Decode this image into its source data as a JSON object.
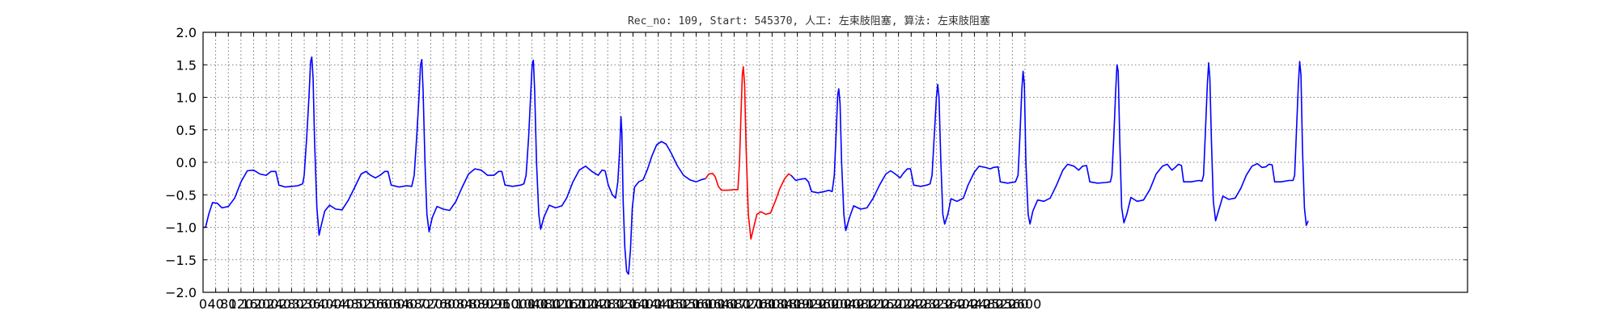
{
  "chart_data": {
    "type": "line",
    "title": "Rec_no: 109, Start: 545370, 人工: 左束肢阻塞, 算法: 左束肢阻塞",
    "xlabel": "",
    "ylabel": "",
    "xlim": [
      0,
      4000
    ],
    "ylim": [
      -2.0,
      2.0
    ],
    "grid": true,
    "yticks": [
      -2.0,
      -1.5,
      -1.0,
      -0.5,
      0.0,
      0.5,
      1.0,
      1.5,
      2.0
    ],
    "ytick_labels": [
      "−2.0",
      "−1.5",
      "−1.0",
      "−0.5",
      "0.0",
      "0.5",
      "1.0",
      "1.5",
      "2.0"
    ],
    "xticks": [
      0,
      40,
      80,
      120,
      160,
      200,
      240,
      280,
      320,
      360,
      400,
      440,
      480,
      520,
      560,
      600,
      640,
      680,
      720,
      760,
      800,
      840,
      880,
      920,
      960,
      1000,
      1040,
      1080,
      1120,
      1160,
      1200,
      1240,
      1280,
      1320,
      1360,
      1400,
      1440,
      1480,
      1520,
      1560,
      1600,
      1640,
      1680,
      1720,
      1760,
      1800,
      1840,
      1880,
      1920,
      1960,
      2000,
      2040,
      2080,
      2120,
      2160,
      2200,
      2240,
      2280,
      2320,
      2360,
      2400,
      2440,
      2480,
      2520,
      2560,
      2600
    ],
    "xtick_labels": [
      "0",
      "40",
      "80",
      "120",
      "160",
      "200",
      "240",
      "280",
      "320",
      "360",
      "400",
      "440",
      "480",
      "520",
      "560",
      "600",
      "640",
      "680",
      "720",
      "760",
      "800",
      "840",
      "880",
      "920",
      "960",
      "1000",
      "1040",
      "1080",
      "1120",
      "1160",
      "1200",
      "1240",
      "1280",
      "1320",
      "1360",
      "1400",
      "1440",
      "1480",
      "1520",
      "1560",
      "1600",
      "1640",
      "1680",
      "1720",
      "1760",
      "1800",
      "1840",
      "1880",
      "1920",
      "1960",
      "2000",
      "2040",
      "2080",
      "2120",
      "2160",
      "2200",
      "2240",
      "2280",
      "2320",
      "2360",
      "2400",
      "2440",
      "2480",
      "2520",
      "2560",
      "2600"
    ],
    "series": [
      {
        "color": "#0000ff",
        "segment": "before",
        "points": [
          [
            0,
            -1.0
          ],
          [
            8,
            -1.0
          ],
          [
            18,
            -0.8
          ],
          [
            30,
            -0.62
          ],
          [
            45,
            -0.63
          ],
          [
            60,
            -0.7
          ],
          [
            80,
            -0.68
          ],
          [
            100,
            -0.55
          ],
          [
            120,
            -0.3
          ],
          [
            140,
            -0.13
          ],
          [
            160,
            -0.12
          ],
          [
            180,
            -0.18
          ],
          [
            200,
            -0.2
          ],
          [
            215,
            -0.14
          ],
          [
            230,
            -0.14
          ],
          [
            240,
            -0.35
          ],
          [
            260,
            -0.38
          ],
          [
            280,
            -0.37
          ],
          [
            300,
            -0.36
          ],
          [
            315,
            -0.33
          ],
          [
            320,
            -0.2
          ],
          [
            328,
            0.4
          ],
          [
            335,
            1.0
          ],
          [
            340,
            1.55
          ],
          [
            344,
            1.62
          ],
          [
            348,
            1.3
          ],
          [
            353,
            0.3
          ],
          [
            360,
            -0.7
          ],
          [
            367,
            -1.12
          ],
          [
            375,
            -0.95
          ],
          [
            385,
            -0.75
          ],
          [
            400,
            -0.66
          ],
          [
            420,
            -0.72
          ],
          [
            440,
            -0.73
          ],
          [
            460,
            -0.58
          ],
          [
            480,
            -0.38
          ],
          [
            500,
            -0.18
          ],
          [
            515,
            -0.14
          ],
          [
            530,
            -0.2
          ],
          [
            545,
            -0.24
          ],
          [
            560,
            -0.2
          ],
          [
            575,
            -0.14
          ],
          [
            585,
            -0.14
          ],
          [
            595,
            -0.35
          ],
          [
            620,
            -0.38
          ],
          [
            645,
            -0.36
          ],
          [
            660,
            -0.37
          ],
          [
            668,
            -0.2
          ],
          [
            676,
            0.4
          ],
          [
            683,
            1.0
          ],
          [
            688,
            1.5
          ],
          [
            692,
            1.58
          ],
          [
            696,
            1.1
          ],
          [
            702,
            0.0
          ],
          [
            708,
            -0.8
          ],
          [
            715,
            -1.07
          ],
          [
            725,
            -0.85
          ],
          [
            740,
            -0.68
          ],
          [
            760,
            -0.72
          ],
          [
            780,
            -0.74
          ],
          [
            800,
            -0.6
          ],
          [
            820,
            -0.38
          ],
          [
            840,
            -0.18
          ],
          [
            860,
            -0.1
          ],
          [
            880,
            -0.12
          ],
          [
            900,
            -0.2
          ],
          [
            920,
            -0.2
          ],
          [
            935,
            -0.14
          ],
          [
            945,
            -0.14
          ],
          [
            955,
            -0.35
          ],
          [
            980,
            -0.37
          ],
          [
            1005,
            -0.35
          ],
          [
            1015,
            -0.33
          ],
          [
            1022,
            -0.2
          ],
          [
            1030,
            0.4
          ],
          [
            1036,
            1.0
          ],
          [
            1041,
            1.5
          ],
          [
            1045,
            1.57
          ],
          [
            1049,
            1.1
          ],
          [
            1055,
            0.0
          ],
          [
            1062,
            -0.8
          ],
          [
            1068,
            -1.03
          ],
          [
            1078,
            -0.85
          ],
          [
            1095,
            -0.66
          ],
          [
            1115,
            -0.7
          ],
          [
            1135,
            -0.67
          ],
          [
            1150,
            -0.55
          ],
          [
            1170,
            -0.3
          ],
          [
            1190,
            -0.12
          ],
          [
            1210,
            -0.06
          ],
          [
            1230,
            -0.14
          ],
          [
            1250,
            -0.2
          ],
          [
            1262,
            -0.12
          ],
          [
            1272,
            -0.13
          ],
          [
            1282,
            -0.35
          ],
          [
            1295,
            -0.5
          ],
          [
            1305,
            -0.55
          ],
          [
            1312,
            -0.3
          ],
          [
            1318,
            0.2
          ],
          [
            1322,
            0.7
          ],
          [
            1325,
            0.45
          ],
          [
            1329,
            -0.6
          ],
          [
            1334,
            -1.3
          ],
          [
            1340,
            -1.68
          ],
          [
            1346,
            -1.72
          ],
          [
            1352,
            -1.35
          ],
          [
            1358,
            -0.7
          ],
          [
            1365,
            -0.38
          ],
          [
            1378,
            -0.3
          ],
          [
            1392,
            -0.27
          ],
          [
            1405,
            -0.12
          ],
          [
            1420,
            0.1
          ],
          [
            1435,
            0.27
          ],
          [
            1450,
            0.32
          ],
          [
            1465,
            0.28
          ],
          [
            1480,
            0.15
          ],
          [
            1500,
            -0.05
          ],
          [
            1520,
            -0.2
          ],
          [
            1540,
            -0.27
          ],
          [
            1560,
            -0.3
          ],
          [
            1575,
            -0.27
          ],
          [
            1590,
            -0.25
          ]
        ]
      },
      {
        "color": "#ff0000",
        "segment": "highlighted beat",
        "points": [
          [
            1590,
            -0.25
          ],
          [
            1600,
            -0.18
          ],
          [
            1612,
            -0.17
          ],
          [
            1620,
            -0.22
          ],
          [
            1630,
            -0.37
          ],
          [
            1640,
            -0.43
          ],
          [
            1660,
            -0.43
          ],
          [
            1680,
            -0.42
          ],
          [
            1692,
            -0.42
          ],
          [
            1697,
            0.0
          ],
          [
            1702,
            0.8
          ],
          [
            1706,
            1.35
          ],
          [
            1709,
            1.47
          ],
          [
            1713,
            1.2
          ],
          [
            1718,
            0.2
          ],
          [
            1725,
            -0.8
          ],
          [
            1733,
            -1.18
          ],
          [
            1742,
            -1.0
          ],
          [
            1752,
            -0.8
          ],
          [
            1765,
            -0.76
          ],
          [
            1780,
            -0.8
          ],
          [
            1795,
            -0.78
          ],
          [
            1810,
            -0.6
          ],
          [
            1825,
            -0.4
          ],
          [
            1840,
            -0.25
          ],
          [
            1852,
            -0.18
          ],
          [
            1860,
            -0.2
          ]
        ]
      },
      {
        "color": "#0000ff",
        "segment": "after",
        "points": [
          [
            1860,
            -0.2
          ],
          [
            1875,
            -0.28
          ],
          [
            1890,
            -0.26
          ],
          [
            1905,
            -0.25
          ],
          [
            1915,
            -0.3
          ],
          [
            1925,
            -0.45
          ],
          [
            1945,
            -0.47
          ],
          [
            1965,
            -0.45
          ],
          [
            1980,
            -0.43
          ],
          [
            1990,
            -0.45
          ],
          [
            1997,
            -0.2
          ],
          [
            2003,
            0.5
          ],
          [
            2008,
            1.05
          ],
          [
            2011,
            1.13
          ],
          [
            2015,
            0.9
          ],
          [
            2020,
            0.0
          ],
          [
            2027,
            -0.8
          ],
          [
            2033,
            -1.05
          ],
          [
            2045,
            -0.85
          ],
          [
            2058,
            -0.67
          ],
          [
            2080,
            -0.72
          ],
          [
            2100,
            -0.7
          ],
          [
            2120,
            -0.55
          ],
          [
            2140,
            -0.35
          ],
          [
            2160,
            -0.18
          ],
          [
            2175,
            -0.13
          ],
          [
            2190,
            -0.18
          ],
          [
            2205,
            -0.24
          ],
          [
            2215,
            -0.17
          ],
          [
            2228,
            -0.1
          ],
          [
            2238,
            -0.1
          ],
          [
            2248,
            -0.35
          ],
          [
            2270,
            -0.37
          ],
          [
            2290,
            -0.35
          ],
          [
            2300,
            -0.33
          ],
          [
            2306,
            -0.2
          ],
          [
            2313,
            0.4
          ],
          [
            2320,
            1.0
          ],
          [
            2324,
            1.2
          ],
          [
            2328,
            1.0
          ],
          [
            2334,
            0.0
          ],
          [
            2340,
            -0.8
          ],
          [
            2346,
            -0.95
          ],
          [
            2356,
            -0.8
          ],
          [
            2366,
            -0.56
          ],
          [
            2385,
            -0.6
          ],
          [
            2405,
            -0.55
          ],
          [
            2420,
            -0.35
          ],
          [
            2440,
            -0.15
          ],
          [
            2455,
            -0.06
          ],
          [
            2475,
            -0.08
          ],
          [
            2490,
            -0.1
          ],
          [
            2500,
            -0.08
          ],
          [
            2515,
            -0.07
          ],
          [
            2522,
            -0.3
          ],
          [
            2545,
            -0.32
          ],
          [
            2570,
            -0.3
          ],
          [
            2578,
            -0.2
          ],
          [
            2584,
            0.4
          ],
          [
            2590,
            1.1
          ],
          [
            2594,
            1.4
          ],
          [
            2598,
            1.2
          ],
          [
            2603,
            0.0
          ],
          [
            2610,
            -0.8
          ],
          [
            2616,
            -0.95
          ],
          [
            2625,
            -0.75
          ],
          [
            2640,
            -0.58
          ],
          [
            2660,
            -0.6
          ],
          [
            2680,
            -0.55
          ],
          [
            2700,
            -0.35
          ],
          [
            2720,
            -0.12
          ],
          [
            2735,
            -0.03
          ],
          [
            2755,
            -0.06
          ],
          [
            2770,
            -0.12
          ],
          [
            2782,
            -0.06
          ],
          [
            2795,
            -0.05
          ],
          [
            2805,
            -0.3
          ],
          [
            2830,
            -0.32
          ],
          [
            2855,
            -0.31
          ],
          [
            2870,
            -0.3
          ],
          [
            2875,
            -0.2
          ],
          [
            2881,
            0.4
          ],
          [
            2887,
            1.1
          ],
          [
            2891,
            1.5
          ],
          [
            2895,
            1.4
          ],
          [
            2900,
            0.3
          ],
          [
            2906,
            -0.7
          ],
          [
            2913,
            -0.93
          ],
          [
            2922,
            -0.8
          ],
          [
            2935,
            -0.54
          ],
          [
            2955,
            -0.6
          ],
          [
            2975,
            -0.58
          ],
          [
            2995,
            -0.42
          ],
          [
            3015,
            -0.18
          ],
          [
            3035,
            -0.06
          ],
          [
            3050,
            -0.03
          ],
          [
            3065,
            -0.12
          ],
          [
            3075,
            -0.08
          ],
          [
            3085,
            -0.03
          ],
          [
            3095,
            -0.05
          ],
          [
            3102,
            -0.3
          ],
          [
            3125,
            -0.3
          ],
          [
            3150,
            -0.28
          ],
          [
            3160,
            -0.29
          ],
          [
            3165,
            -0.2
          ],
          [
            3171,
            0.5
          ],
          [
            3177,
            1.2
          ],
          [
            3181,
            1.53
          ],
          [
            3185,
            1.3
          ],
          [
            3190,
            0.3
          ],
          [
            3196,
            -0.6
          ],
          [
            3203,
            -0.9
          ],
          [
            3212,
            -0.75
          ],
          [
            3226,
            -0.52
          ],
          [
            3245,
            -0.57
          ],
          [
            3265,
            -0.55
          ],
          [
            3283,
            -0.4
          ],
          [
            3300,
            -0.2
          ],
          [
            3318,
            -0.06
          ],
          [
            3335,
            -0.02
          ],
          [
            3350,
            -0.08
          ],
          [
            3362,
            -0.07
          ],
          [
            3372,
            -0.03
          ],
          [
            3382,
            -0.04
          ],
          [
            3390,
            -0.3
          ],
          [
            3410,
            -0.3
          ],
          [
            3435,
            -0.28
          ],
          [
            3448,
            -0.28
          ],
          [
            3453,
            -0.2
          ],
          [
            3459,
            0.5
          ],
          [
            3465,
            1.2
          ],
          [
            3469,
            1.55
          ],
          [
            3473,
            1.35
          ],
          [
            3478,
            0.2
          ],
          [
            3484,
            -0.7
          ],
          [
            3490,
            -0.97
          ],
          [
            3496,
            -0.9
          ]
        ]
      }
    ]
  }
}
